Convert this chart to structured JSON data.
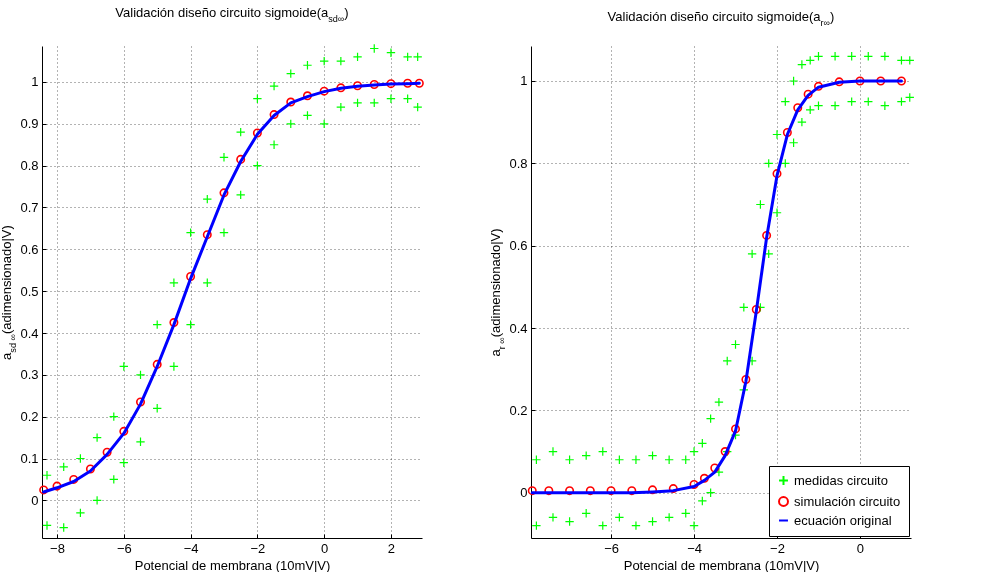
{
  "chart_data": [
    {
      "type": "scatter",
      "title": "Validación diseño circuito sigmoide(a$_{sd∞}$)",
      "xlabel": "Potencial de membrana (10mV|V)",
      "ylabel": "a$_{sd ∞}$(adimensionado|V)",
      "xlim": [
        -8.45,
        2.93
      ],
      "ylim": [
        -0.09,
        1.086
      ],
      "xticks": [
        -8,
        -6,
        -4,
        -2,
        0,
        2
      ],
      "yticks": [
        0,
        0.1,
        0.2,
        0.3,
        0.4,
        0.5,
        0.6,
        0.7,
        0.8,
        0.9,
        1
      ],
      "grid": true,
      "series": [
        {
          "marker": "cross",
          "color": "#00ff00",
          "x": [
            -8.3,
            -8.3,
            -7.8,
            -7.8,
            -7.3,
            -7.3,
            -6.8,
            -6.8,
            -6.3,
            -6.3,
            -6.0,
            -6.0,
            -5.5,
            -5.5,
            -5.0,
            -5.0,
            -4.5,
            -4.5,
            -4.0,
            -4.0,
            -3.5,
            -3.5,
            -3.0,
            -3.0,
            -2.5,
            -2.5,
            -2.0,
            -2.0,
            -1.5,
            -1.5,
            -1.0,
            -1.0,
            -0.5,
            -0.5,
            0,
            0,
            0.5,
            0.5,
            1.0,
            1.0,
            1.5,
            1.5,
            2.0,
            2.0,
            2.5,
            2.5,
            2.8,
            2.8
          ],
          "values": [
            -0.06,
            0.06,
            -0.065,
            0.08,
            -0.03,
            0.1,
            0.0,
            0.15,
            0.05,
            0.2,
            0.09,
            0.32,
            0.14,
            0.3,
            0.22,
            0.42,
            0.32,
            0.52,
            0.42,
            0.64,
            0.52,
            0.72,
            0.64,
            0.82,
            0.73,
            0.88,
            0.8,
            0.96,
            0.85,
            0.99,
            0.9,
            1.02,
            0.92,
            1.04,
            0.9,
            1.05,
            0.94,
            1.05,
            0.95,
            1.06,
            0.95,
            1.08,
            0.96,
            1.07,
            0.96,
            1.06,
            0.94,
            1.06
          ]
        },
        {
          "marker": "circle",
          "color": "#ff0000",
          "x": [
            -8.4,
            -8,
            -7.5,
            -7,
            -6.5,
            -6,
            -5.5,
            -5,
            -4.5,
            -4,
            -3.5,
            -3,
            -2.5,
            -2,
            -1.5,
            -1,
            -0.5,
            0,
            0.5,
            1,
            1.5,
            2,
            2.5,
            2.85
          ],
          "values": [
            0.025,
            0.034,
            0.05,
            0.075,
            0.115,
            0.165,
            0.235,
            0.325,
            0.425,
            0.535,
            0.635,
            0.735,
            0.815,
            0.878,
            0.922,
            0.952,
            0.967,
            0.978,
            0.986,
            0.991,
            0.994,
            0.996,
            0.997,
            0.997
          ]
        },
        {
          "type": "line",
          "color": "#0000ff",
          "x": [
            -8.4,
            -8,
            -7.5,
            -7,
            -6.5,
            -6,
            -5.5,
            -5,
            -4.5,
            -4,
            -3.5,
            -3,
            -2.5,
            -2,
            -1.5,
            -1,
            -0.5,
            0,
            0.5,
            1,
            1.5,
            2,
            2.5,
            2.85
          ],
          "values": [
            0.02,
            0.03,
            0.045,
            0.07,
            0.11,
            0.16,
            0.23,
            0.32,
            0.42,
            0.53,
            0.63,
            0.73,
            0.81,
            0.875,
            0.92,
            0.95,
            0.965,
            0.977,
            0.985,
            0.99,
            0.993,
            0.995,
            0.996,
            0.997
          ]
        }
      ]
    },
    {
      "type": "scatter",
      "title": "Validación diseño circuito sigmoide(a$_{r∞}$)",
      "xlabel": "Potencial de membrana (10mV|V)",
      "ylabel": "a$_{r ∞}$(adimensionado|V)",
      "xlim": [
        -7.93,
        1.23
      ],
      "ylim": [
        -0.11,
        1.085
      ],
      "xticks": [
        -6,
        -4,
        -2,
        0
      ],
      "yticks": [
        0,
        0.2,
        0.4,
        0.6,
        0.8,
        1
      ],
      "grid": true,
      "legend": "bottom right",
      "series": [
        {
          "name": "medidas circuito",
          "marker": "cross",
          "color": "#00ff00",
          "x": [
            -7.8,
            -7.8,
            -7.4,
            -7.4,
            -7,
            -7,
            -6.6,
            -6.6,
            -6.2,
            -6.2,
            -5.8,
            -5.8,
            -5.4,
            -5.4,
            -5,
            -5,
            -4.6,
            -4.6,
            -4.2,
            -4.2,
            -4.0,
            -4.0,
            -3.8,
            -3.8,
            -3.6,
            -3.6,
            -3.4,
            -3.4,
            -3.2,
            -3.2,
            -3.0,
            -3.0,
            -2.8,
            -2.8,
            -2.6,
            -2.6,
            -2.4,
            -2.4,
            -2.2,
            -2.2,
            -2.0,
            -2.0,
            -1.8,
            -1.8,
            -1.6,
            -1.6,
            -1.4,
            -1.4,
            -1.2,
            -1.2,
            -1.0,
            -1.0,
            -0.6,
            -0.6,
            -0.2,
            -0.2,
            0.2,
            0.2,
            0.6,
            0.6,
            1.0,
            1.0,
            1.2,
            1.2
          ],
          "values": [
            -0.08,
            0.08,
            -0.06,
            0.1,
            -0.07,
            0.08,
            -0.05,
            0.09,
            -0.08,
            0.1,
            -0.06,
            0.08,
            -0.08,
            0.08,
            -0.07,
            0.09,
            -0.06,
            0.08,
            -0.05,
            0.08,
            -0.08,
            0.1,
            -0.02,
            0.12,
            0.0,
            0.18,
            0.05,
            0.22,
            0.1,
            0.32,
            0.14,
            0.36,
            0.25,
            0.45,
            0.32,
            0.58,
            0.45,
            0.7,
            0.58,
            0.8,
            0.68,
            0.87,
            0.8,
            0.95,
            0.85,
            1.0,
            0.9,
            1.04,
            0.93,
            1.05,
            0.94,
            1.06,
            0.94,
            1.06,
            0.95,
            1.06,
            0.95,
            1.06,
            0.94,
            1.06,
            0.95,
            1.05,
            0.96,
            1.05
          ]
        },
        {
          "name": "simulación circuito",
          "marker": "circle",
          "color": "#ff0000",
          "x": [
            -7.9,
            -7.5,
            -7,
            -6.5,
            -6,
            -5.5,
            -5,
            -4.5,
            -4,
            -3.75,
            -3.5,
            -3.25,
            -3,
            -2.75,
            -2.5,
            -2.25,
            -2,
            -1.75,
            -1.5,
            -1.25,
            -1,
            -0.5,
            0,
            0.5,
            1
          ],
          "values": [
            0.005,
            0.005,
            0.005,
            0.005,
            0.005,
            0.005,
            0.007,
            0.01,
            0.02,
            0.035,
            0.06,
            0.1,
            0.155,
            0.275,
            0.445,
            0.625,
            0.775,
            0.875,
            0.935,
            0.968,
            0.987,
            0.998,
            1.0,
            1.0,
            1.0
          ]
        },
        {
          "name": "ecuación original",
          "type": "line",
          "color": "#0000ff",
          "x": [
            -7.9,
            -7.5,
            -7,
            -6.5,
            -6,
            -5.5,
            -5,
            -4.5,
            -4,
            -3.75,
            -3.5,
            -3.25,
            -3,
            -2.75,
            -2.5,
            -2.25,
            -2,
            -1.75,
            -1.5,
            -1.25,
            -1,
            -0.5,
            0,
            0.5,
            1
          ],
          "values": [
            0,
            0,
            0,
            0,
            0,
            0,
            0.002,
            0.005,
            0.015,
            0.03,
            0.05,
            0.09,
            0.15,
            0.27,
            0.44,
            0.62,
            0.77,
            0.87,
            0.93,
            0.965,
            0.985,
            0.997,
            1.0,
            1.0,
            1.0
          ]
        }
      ]
    }
  ]
}
